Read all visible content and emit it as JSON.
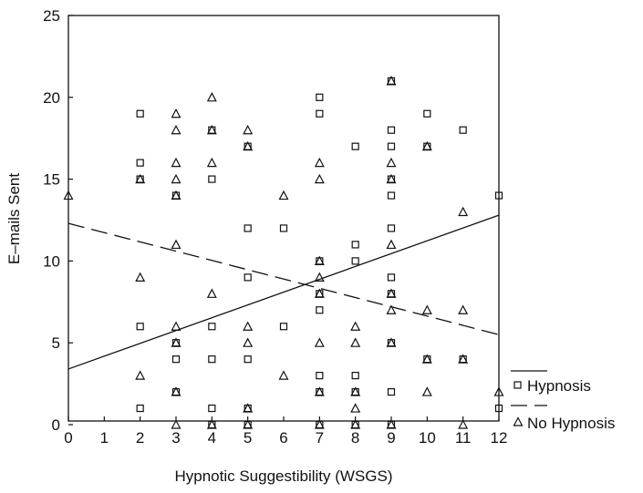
{
  "chart_data": {
    "type": "scatter",
    "xlabel": "Hypnotic Suggestibility (WSGS)",
    "ylabel": "E–mails Sent",
    "xlim": [
      0,
      12
    ],
    "ylim": [
      0,
      25
    ],
    "x_ticks": [
      "0",
      "1",
      "2",
      "3",
      "4",
      "5",
      "6",
      "7",
      "8",
      "9",
      "10",
      "11",
      "12"
    ],
    "y_ticks": [
      "0",
      "5",
      "10",
      "15",
      "20",
      "25"
    ],
    "grid": false,
    "legend_position": "right",
    "series": [
      {
        "name": "Hypnosis",
        "marker": "square",
        "points": [
          [
            2,
            19
          ],
          [
            2,
            16
          ],
          [
            2,
            15
          ],
          [
            2,
            6
          ],
          [
            2,
            1
          ],
          [
            3,
            14
          ],
          [
            3,
            5
          ],
          [
            3,
            4
          ],
          [
            3,
            2
          ],
          [
            4,
            18
          ],
          [
            4,
            15
          ],
          [
            4,
            6
          ],
          [
            4,
            4
          ],
          [
            4,
            1
          ],
          [
            4,
            0
          ],
          [
            5,
            17
          ],
          [
            5,
            12
          ],
          [
            5,
            9
          ],
          [
            5,
            4
          ],
          [
            5,
            1
          ],
          [
            5,
            0
          ],
          [
            6,
            12
          ],
          [
            6,
            6
          ],
          [
            7,
            20
          ],
          [
            7,
            19
          ],
          [
            7,
            10
          ],
          [
            7,
            8
          ],
          [
            7,
            7
          ],
          [
            7,
            3
          ],
          [
            7,
            2
          ],
          [
            7,
            0
          ],
          [
            8,
            17
          ],
          [
            8,
            11
          ],
          [
            8,
            10
          ],
          [
            8,
            3
          ],
          [
            8,
            2
          ],
          [
            8,
            0
          ],
          [
            9,
            21
          ],
          [
            9,
            18
          ],
          [
            9,
            17
          ],
          [
            9,
            15
          ],
          [
            9,
            14
          ],
          [
            9,
            12
          ],
          [
            9,
            9
          ],
          [
            9,
            8
          ],
          [
            9,
            5
          ],
          [
            9,
            2
          ],
          [
            9,
            0
          ],
          [
            10,
            19
          ],
          [
            10,
            17
          ],
          [
            10,
            4
          ],
          [
            11,
            18
          ],
          [
            11,
            4
          ],
          [
            12,
            14
          ],
          [
            12,
            1
          ]
        ],
        "fit_line": {
          "style": "solid",
          "x": [
            0,
            12
          ],
          "y": [
            3.4,
            12.8
          ]
        }
      },
      {
        "name": "No Hypnosis",
        "marker": "triangle",
        "points": [
          [
            0,
            14
          ],
          [
            2,
            15
          ],
          [
            2,
            9
          ],
          [
            2,
            3
          ],
          [
            3,
            19
          ],
          [
            3,
            18
          ],
          [
            3,
            16
          ],
          [
            3,
            15
          ],
          [
            3,
            14
          ],
          [
            3,
            11
          ],
          [
            3,
            6
          ],
          [
            3,
            5
          ],
          [
            3,
            2
          ],
          [
            3,
            0
          ],
          [
            4,
            20
          ],
          [
            4,
            18
          ],
          [
            4,
            16
          ],
          [
            4,
            8
          ],
          [
            4,
            0
          ],
          [
            5,
            18
          ],
          [
            5,
            17
          ],
          [
            5,
            6
          ],
          [
            5,
            5
          ],
          [
            5,
            1
          ],
          [
            5,
            0
          ],
          [
            6,
            14
          ],
          [
            6,
            3
          ],
          [
            7,
            16
          ],
          [
            7,
            15
          ],
          [
            7,
            10
          ],
          [
            7,
            9
          ],
          [
            7,
            8
          ],
          [
            7,
            5
          ],
          [
            7,
            2
          ],
          [
            7,
            0
          ],
          [
            8,
            6
          ],
          [
            8,
            5
          ],
          [
            8,
            2
          ],
          [
            8,
            1
          ],
          [
            8,
            0
          ],
          [
            9,
            21
          ],
          [
            9,
            16
          ],
          [
            9,
            15
          ],
          [
            9,
            11
          ],
          [
            9,
            8
          ],
          [
            9,
            7
          ],
          [
            9,
            5
          ],
          [
            9,
            0
          ],
          [
            10,
            17
          ],
          [
            10,
            7
          ],
          [
            10,
            4
          ],
          [
            10,
            2
          ],
          [
            11,
            13
          ],
          [
            11,
            7
          ],
          [
            11,
            4
          ],
          [
            11,
            0
          ],
          [
            12,
            2
          ]
        ],
        "fit_line": {
          "style": "dashed",
          "x": [
            0,
            12
          ],
          "y": [
            12.3,
            5.5
          ]
        }
      }
    ]
  }
}
